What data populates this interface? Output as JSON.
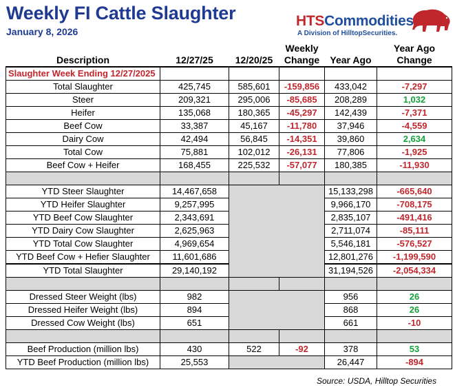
{
  "header": {
    "title": "Weekly FI Cattle Slaughter",
    "date": "January 8, 2026"
  },
  "logo": {
    "brand_hts": "HTS",
    "brand_rest": "Commodities",
    "subtitle": "A Division of HilltopSecurities.",
    "icon": "bison-icon",
    "brand_color": "#1f4e9c",
    "accent_color": "#c0272d"
  },
  "columns": {
    "description": "Description",
    "week1": "12/27/25",
    "week2": "12/20/25",
    "weekly_change": "Weekly Change",
    "year_ago": "Year Ago",
    "year_ago_change": "Year Ago Change"
  },
  "section_label": "Slaughter Week Ending 12/27/2025",
  "weekly_rows": [
    {
      "desc": "Total Slaughter",
      "w1": "425,745",
      "w2": "585,601",
      "wc": "-159,856",
      "ya": "433,042",
      "yac": "-7,297",
      "yac_sign": "neg"
    },
    {
      "desc": "Steer",
      "w1": "209,321",
      "w2": "295,006",
      "wc": "-85,685",
      "ya": "208,289",
      "yac": "1,032",
      "yac_sign": "pos"
    },
    {
      "desc": "Heifer",
      "w1": "135,068",
      "w2": "180,365",
      "wc": "-45,297",
      "ya": "142,439",
      "yac": "-7,371",
      "yac_sign": "neg"
    },
    {
      "desc": "Beef Cow",
      "w1": "33,387",
      "w2": "45,167",
      "wc": "-11,780",
      "ya": "37,946",
      "yac": "-4,559",
      "yac_sign": "neg"
    },
    {
      "desc": "Dairy Cow",
      "w1": "42,494",
      "w2": "56,845",
      "wc": "-14,351",
      "ya": "39,860",
      "yac": "2,634",
      "yac_sign": "pos"
    },
    {
      "desc": "Total Cow",
      "w1": "75,881",
      "w2": "102,012",
      "wc": "-26,131",
      "ya": "77,806",
      "yac": "-1,925",
      "yac_sign": "neg"
    },
    {
      "desc": "Beef Cow + Heifer",
      "w1": "168,455",
      "w2": "225,532",
      "wc": "-57,077",
      "ya": "180,385",
      "yac": "-11,930",
      "yac_sign": "neg"
    }
  ],
  "ytd_rows": [
    {
      "desc": "YTD Steer Slaughter",
      "w1": "14,467,658",
      "ya": "15,133,298",
      "yac": "-665,640"
    },
    {
      "desc": "YTD Heifer Slaughter",
      "w1": "9,257,995",
      "ya": "9,966,170",
      "yac": "-708,175"
    },
    {
      "desc": "YTD Beef Cow Slaughter",
      "w1": "2,343,691",
      "ya": "2,835,107",
      "yac": "-491,416"
    },
    {
      "desc": "YTD Dairy Cow Slaughter",
      "w1": "2,625,963",
      "ya": "2,711,074",
      "yac": "-85,111"
    },
    {
      "desc": "YTD Total Cow Slaughter",
      "w1": "4,969,654",
      "ya": "5,546,181",
      "yac": "-576,527"
    },
    {
      "desc": "YTD Beef Cow + Hefier Slaughter",
      "w1": "11,601,686",
      "ya": "12,801,276",
      "yac": "-1,199,590"
    }
  ],
  "ytd_total": {
    "desc": "YTD Total Slaughter",
    "w1": "29,140,192",
    "ya": "31,194,526",
    "yac": "-2,054,334"
  },
  "weight_rows": [
    {
      "desc": "Dressed Steer Weight (lbs)",
      "w1": "982",
      "ya": "956",
      "yac": "26",
      "yac_sign": "pos"
    },
    {
      "desc": "Dressed Heifer Weight (lbs)",
      "w1": "894",
      "ya": "868",
      "yac": "26",
      "yac_sign": "pos"
    },
    {
      "desc": "Dressed Cow Weight (lbs)",
      "w1": "651",
      "ya": "661",
      "yac": "-10",
      "yac_sign": "neg"
    }
  ],
  "beef_production": {
    "desc": "Beef Production (million lbs)",
    "w1": "430",
    "w2": "522",
    "wc": "-92",
    "ya": "378",
    "yac": "53",
    "yac_sign": "pos"
  },
  "ytd_beef_production": {
    "desc": "YTD Beef Production (million lbs)",
    "w1": "25,553",
    "ya": "26,447",
    "yac": "-894"
  },
  "source": "Source: USDA, Hilltop Securities"
}
